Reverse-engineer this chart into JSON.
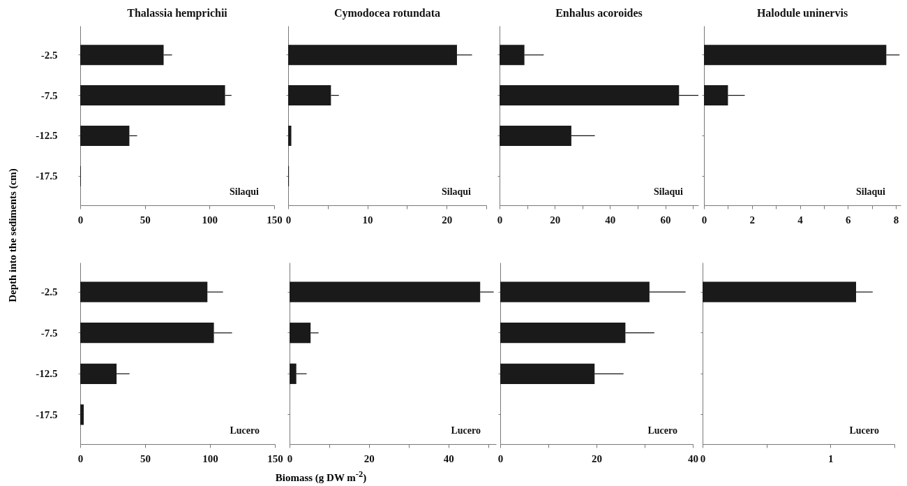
{
  "chart_data": [
    {
      "type": "bar",
      "orientation": "horizontal",
      "title": "Thalassia hemprichii",
      "ylabel": "Depth into the sediments (cm)",
      "categories": [
        "-2.5",
        "-7.5",
        "-12.5",
        "-17.5"
      ],
      "values": [
        64.5,
        112,
        38,
        0.5
      ],
      "errors": [
        6.5,
        5,
        6,
        null
      ],
      "color": "#1a1a1a",
      "xlim": [
        0,
        150
      ],
      "xticks": [
        0,
        50,
        100,
        150
      ],
      "annotations": [
        "Silaqui"
      ]
    },
    {
      "type": "bar",
      "orientation": "horizontal",
      "title": "Cymodocea rotundata",
      "categories": [
        "-2.5",
        "-7.5",
        "-12.5",
        "-17.5"
      ],
      "values": [
        21.3,
        5.4,
        0.4,
        0.1
      ],
      "errors": [
        1.9,
        1,
        null,
        null
      ],
      "color": "#1a1a1a",
      "xlim": [
        0,
        25
      ],
      "xticks": [
        0,
        {
          "value": 5,
          "label": null
        },
        10,
        {
          "value": 15,
          "label": null
        },
        20,
        {
          "value": 25,
          "label": null
        }
      ],
      "annotations": [
        "Silaqui"
      ],
      "tick_labels": "x"
    },
    {
      "type": "bar",
      "orientation": "horizontal",
      "title": "Enhalus acoroides",
      "categories": [
        "-2.5",
        "-7.5",
        "-12.5",
        "-17.5"
      ],
      "values": [
        9,
        65,
        26,
        null
      ],
      "errors": [
        7,
        7,
        8.5,
        null
      ],
      "color": "#1a1a1a",
      "xlim": [
        0,
        72
      ],
      "xticks": [
        0,
        {
          "value": 10,
          "label": null
        },
        20,
        {
          "value": 30,
          "label": null
        },
        40,
        {
          "value": 50,
          "label": null
        },
        60,
        {
          "value": 70,
          "label": null
        }
      ],
      "annotations": [
        "Silaqui"
      ],
      "tick_labels": "x"
    },
    {
      "type": "bar",
      "orientation": "horizontal",
      "title": "Halodule uninervis",
      "categories": [
        "-2.5",
        "-7.5",
        "-12.5",
        "-17.5"
      ],
      "values": [
        7.6,
        1,
        null,
        null
      ],
      "errors": [
        0.55,
        0.7,
        null,
        null
      ],
      "color": "#1a1a1a",
      "xlim": [
        0,
        8.2
      ],
      "xticks": [
        0,
        {
          "value": 1,
          "label": null
        },
        2,
        {
          "value": 3,
          "label": null
        },
        4,
        {
          "value": 5,
          "label": null
        },
        6,
        {
          "value": 7,
          "label": null
        },
        8
      ],
      "annotations": [
        "Silaqui"
      ],
      "tick_labels": "x"
    },
    {
      "type": "bar",
      "orientation": "horizontal",
      "categories": [
        "-2.5",
        "-7.5",
        "-12.5",
        "-17.5"
      ],
      "values": [
        98,
        103,
        28,
        2.7
      ],
      "errors": [
        12,
        14,
        10,
        null
      ],
      "color": "#1a1a1a",
      "xlim": [
        0,
        150
      ],
      "xticks": [
        0,
        50,
        100,
        150
      ],
      "annotations": [
        "Lucero"
      ]
    },
    {
      "type": "bar",
      "orientation": "horizontal",
      "xlabel": "Biomass (g DW m$^{-2}$)",
      "categories": [
        "-2.5",
        "-7.5",
        "-12.5",
        "-17.5"
      ],
      "values": [
        48,
        5.3,
        1.7,
        null
      ],
      "errors": [
        3.4,
        2,
        2.6,
        null
      ],
      "color": "#1a1a1a",
      "xlim": [
        0,
        52
      ],
      "xticks": [
        0,
        {
          "value": 10,
          "label": null
        },
        20,
        {
          "value": 30,
          "label": null
        },
        40,
        {
          "value": 50,
          "label": null
        }
      ],
      "annotations": [
        "Lucero"
      ],
      "tick_labels": "x"
    },
    {
      "type": "bar",
      "orientation": "horizontal",
      "categories": [
        "-2.5",
        "-7.5",
        "-12.5",
        "-17.5"
      ],
      "values": [
        31,
        26,
        19.6,
        null
      ],
      "errors": [
        7.5,
        6,
        6,
        null
      ],
      "color": "#1a1a1a",
      "xlim": [
        0,
        40
      ],
      "xticks": [
        0,
        {
          "value": 10,
          "label": null
        },
        20,
        {
          "value": 30,
          "label": null
        },
        40
      ],
      "annotations": [
        "Lucero"
      ],
      "tick_labels": "x"
    },
    {
      "type": "bar",
      "orientation": "horizontal",
      "categories": [
        "-2.5",
        "-7.5",
        "-12.5",
        "-17.5"
      ],
      "values": [
        1.2,
        null,
        null,
        null
      ],
      "errors": [
        0.13,
        null,
        null,
        null
      ],
      "color": "#1a1a1a",
      "xlim": [
        0,
        1.5
      ],
      "xticks": [
        0,
        {
          "value": 0.5,
          "label": null
        },
        1,
        {
          "value": 1.5,
          "label": null
        }
      ],
      "annotations": [
        "Lucero"
      ],
      "tick_labels": "x"
    }
  ]
}
